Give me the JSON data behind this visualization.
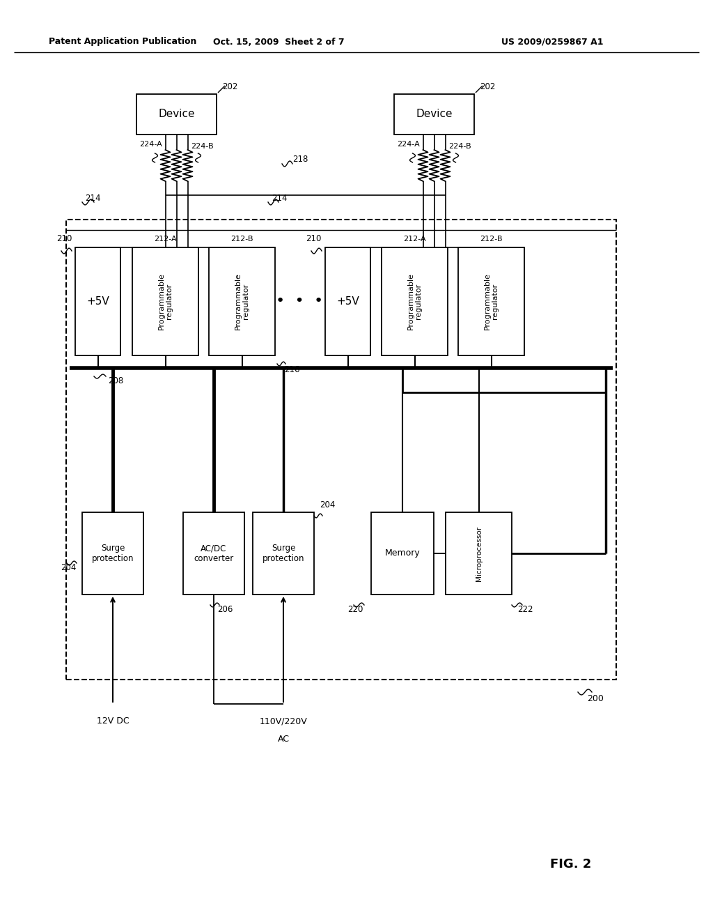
{
  "bg_color": "#ffffff",
  "header_left": "Patent Application Publication",
  "header_mid": "Oct. 15, 2009  Sheet 2 of 7",
  "header_right": "US 2009/0259867 A1",
  "footer_label": "FIG. 2"
}
